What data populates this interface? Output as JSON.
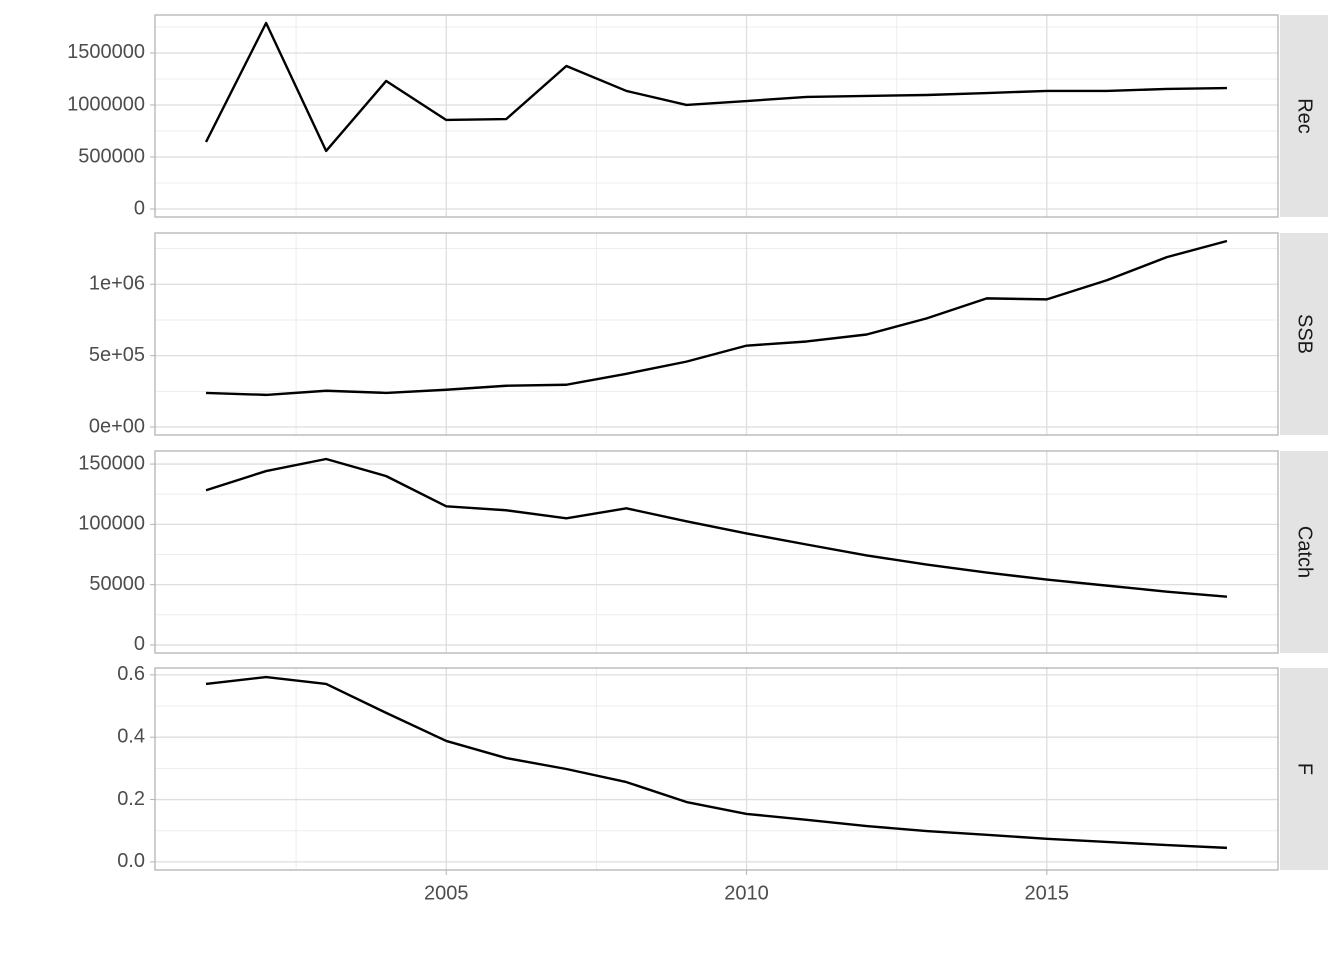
{
  "chart_data": [
    {
      "type": "line",
      "title": "Rec",
      "x": [
        2001,
        2002,
        2003,
        2004,
        2005,
        2006,
        2007,
        2008,
        2009,
        2010,
        2011,
        2012,
        2013,
        2014,
        2015,
        2016,
        2017,
        2018
      ],
      "series": [
        {
          "color": "#000000",
          "values": [
            644000,
            1788000,
            558000,
            1231000,
            856000,
            865000,
            1375000,
            1135000,
            1000000,
            1038000,
            1077000,
            1087000,
            1096000,
            1115000,
            1135000,
            1135000,
            1154000,
            1163000
          ]
        }
      ],
      "xlim": [
        2000.15,
        2018.85
      ],
      "xticks": [
        2005,
        2010,
        2015
      ],
      "ylim": [
        -77000,
        1865000
      ],
      "yticks": [
        0,
        500000,
        1000000,
        1500000
      ],
      "grid": true
    },
    {
      "type": "line",
      "title": "SSB",
      "x": [
        2001,
        2002,
        2003,
        2004,
        2005,
        2006,
        2007,
        2008,
        2009,
        2010,
        2011,
        2012,
        2013,
        2014,
        2015,
        2016,
        2017,
        2018
      ],
      "series": [
        {
          "color": "#000000",
          "values": [
            239000,
            225000,
            254000,
            239000,
            261000,
            289000,
            296000,
            373000,
            458000,
            570000,
            599000,
            648000,
            761000,
            901000,
            894000,
            1028000,
            1190000,
            1303000
          ]
        }
      ],
      "xlim": [
        2000.15,
        2018.85
      ],
      "xticks": [
        2005,
        2010,
        2015
      ],
      "ylim": [
        -56000,
        1359000
      ],
      "yticks": [
        {
          "value": 0,
          "label": "0e+00"
        },
        {
          "value": 500000,
          "label": "5e+05"
        },
        {
          "value": 1000000,
          "label": "1e+06"
        }
      ],
      "grid": true
    },
    {
      "type": "line",
      "title": "Catch",
      "x": [
        2001,
        2002,
        2003,
        2004,
        2005,
        2006,
        2007,
        2008,
        2009,
        2010,
        2011,
        2012,
        2013,
        2014,
        2015,
        2016,
        2017,
        2018
      ],
      "series": [
        {
          "color": "#000000",
          "values": [
            128300,
            144200,
            154200,
            140000,
            115000,
            111700,
            105000,
            113300,
            102500,
            92500,
            83300,
            74200,
            66700,
            60000,
            54200,
            49200,
            44200,
            40000
          ]
        }
      ],
      "xlim": [
        2000.15,
        2018.85
      ],
      "xticks": [
        2005,
        2010,
        2015
      ],
      "ylim": [
        -6667,
        160833
      ],
      "yticks": [
        0,
        50000,
        100000,
        150000
      ],
      "grid": true
    },
    {
      "type": "line",
      "title": "F",
      "x": [
        2001,
        2002,
        2003,
        2004,
        2005,
        2006,
        2007,
        2008,
        2009,
        2010,
        2011,
        2012,
        2013,
        2014,
        2015,
        2016,
        2017,
        2018
      ],
      "series": [
        {
          "color": "#000000",
          "values": [
            0.571,
            0.593,
            0.571,
            0.478,
            0.388,
            0.333,
            0.298,
            0.256,
            0.192,
            0.154,
            0.135,
            0.115,
            0.099,
            0.087,
            0.074,
            0.064,
            0.054,
            0.045
          ]
        }
      ],
      "xlim": [
        2000.15,
        2018.85
      ],
      "xticks": [
        2005,
        2010,
        2015
      ],
      "ylim": [
        -0.026,
        0.622
      ],
      "yticks": [
        {
          "value": 0,
          "label": "0.0"
        },
        0.2,
        0.4,
        0.6
      ],
      "grid": true
    }
  ]
}
